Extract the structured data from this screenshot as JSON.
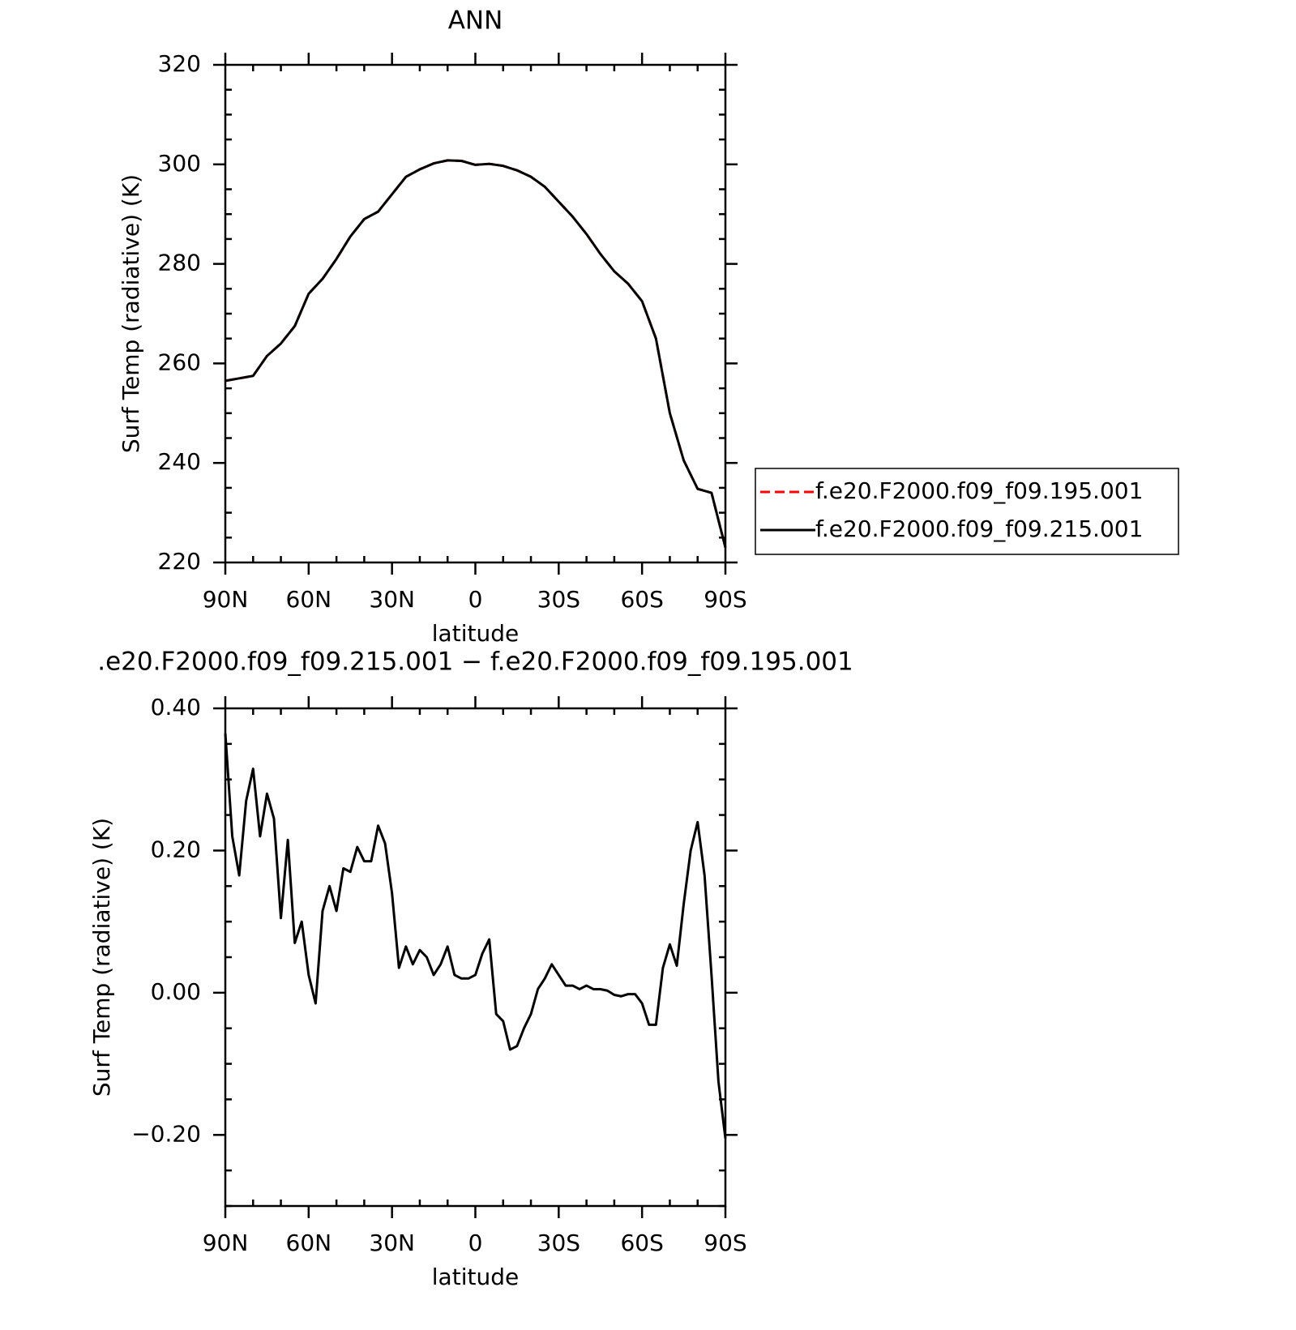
{
  "chart_data": [
    {
      "type": "line",
      "title": "ANN",
      "xlabel": "latitude",
      "ylabel": "Surf Temp (radiative) (K)",
      "x": [
        90,
        85,
        80,
        75,
        70,
        65,
        60,
        55,
        50,
        45,
        40,
        35,
        30,
        25,
        20,
        15,
        10,
        5,
        0,
        -5,
        -10,
        -15,
        -20,
        -25,
        -30,
        -35,
        -40,
        -45,
        -50,
        -55,
        -60,
        -65,
        -70,
        -75,
        -80,
        -85,
        -90
      ],
      "series": [
        {
          "name": "f.e20.F2000.f09_f09.195.001",
          "color": "#ff0000",
          "style": "dashed",
          "values": [
            256.5,
            257,
            257.5,
            261.5,
            264,
            267.5,
            274,
            277,
            281,
            285.5,
            289,
            290.5,
            294,
            297.5,
            299,
            300.2,
            300.8,
            300.7,
            299.9,
            300.1,
            299.7,
            298.8,
            297.5,
            295.5,
            292.5,
            289.5,
            286,
            282,
            278.5,
            276,
            272.5,
            265,
            250,
            240.5,
            234.8,
            234,
            223
          ]
        },
        {
          "name": "f.e20.F2000.f09_f09.215.001",
          "color": "#000000",
          "style": "solid",
          "values": [
            256.5,
            257,
            257.5,
            261.5,
            264,
            267.5,
            274,
            277,
            281,
            285.5,
            289,
            290.5,
            294,
            297.5,
            299,
            300.2,
            300.8,
            300.7,
            299.9,
            300.1,
            299.7,
            298.8,
            297.5,
            295.5,
            292.5,
            289.5,
            286,
            282,
            278.5,
            276,
            272.5,
            265,
            250,
            240.5,
            234.8,
            234,
            223
          ]
        }
      ],
      "xlim": [
        90,
        -90
      ],
      "xticks": [
        {
          "value": 90,
          "label": "90N"
        },
        {
          "value": 60,
          "label": "60N"
        },
        {
          "value": 30,
          "label": "30N"
        },
        0,
        {
          "value": -30,
          "label": "30S"
        },
        {
          "value": -60,
          "label": "60S"
        },
        {
          "value": -90,
          "label": "90S"
        }
      ],
      "ylim": [
        220,
        320
      ],
      "yticks": [
        220,
        240,
        260,
        280,
        300,
        320
      ],
      "legend": "right"
    },
    {
      "type": "line",
      "title": ".e20.F2000.f09_f09.215.001 − f.e20.F2000.f09_f09.195.001",
      "xlabel": "latitude",
      "ylabel": "Surf Temp (radiative) (K)",
      "x": [
        90,
        87.5,
        85,
        82.5,
        80,
        77.5,
        75,
        72.5,
        70,
        67.5,
        65,
        62.5,
        60,
        57.5,
        55,
        52.5,
        50,
        47.5,
        45,
        42.5,
        40,
        37.5,
        35,
        32.5,
        30,
        27.5,
        25,
        22.5,
        20,
        17.5,
        15,
        12.5,
        10,
        7.5,
        5,
        2.5,
        0,
        -2.5,
        -5,
        -7.5,
        -10,
        -12.5,
        -15,
        -17.5,
        -20,
        -22.5,
        -25,
        -27.5,
        -30,
        -32.5,
        -35,
        -37.5,
        -40,
        -42.5,
        -45,
        -47.5,
        -50,
        -52.5,
        -55,
        -57.5,
        -60,
        -62.5,
        -65,
        -67.5,
        -70,
        -72.5,
        -75,
        -77.5,
        -80,
        -82.5,
        -85,
        -87.5,
        -90
      ],
      "color": "#000000",
      "values": [
        0.365,
        0.22,
        0.165,
        0.27,
        0.315,
        0.22,
        0.28,
        0.245,
        0.105,
        0.215,
        0.07,
        0.1,
        0.025,
        -0.015,
        0.115,
        0.15,
        0.115,
        0.175,
        0.17,
        0.205,
        0.185,
        0.185,
        0.235,
        0.21,
        0.14,
        0.035,
        0.065,
        0.04,
        0.06,
        0.05,
        0.025,
        0.04,
        0.065,
        0.025,
        0.02,
        0.02,
        0.025,
        0.055,
        0.075,
        -0.03,
        -0.04,
        -0.08,
        -0.075,
        -0.05,
        -0.03,
        0.005,
        0.02,
        0.04,
        0.025,
        0.01,
        0.01,
        0.005,
        0.01,
        0.005,
        0.005,
        0.003,
        -0.003,
        -0.005,
        -0.002,
        -0.002,
        -0.015,
        -0.045,
        -0.045,
        0.035,
        0.068,
        0.038,
        0.125,
        0.2,
        0.24,
        0.165,
        0.025,
        -0.125,
        -0.205
      ],
      "xlim": [
        90,
        -90
      ],
      "xticks": [
        {
          "value": 90,
          "label": "90N"
        },
        {
          "value": 60,
          "label": "60N"
        },
        {
          "value": 30,
          "label": "30N"
        },
        0,
        {
          "value": -30,
          "label": "30S"
        },
        {
          "value": -60,
          "label": "60S"
        },
        {
          "value": -90,
          "label": "90S"
        }
      ],
      "ylim": [
        -0.3,
        0.4
      ],
      "yticks": [
        {
          "value": -0.2,
          "label": "−0.20"
        },
        {
          "value": 0,
          "label": "0.00"
        },
        {
          "value": 0.2,
          "label": "0.20"
        },
        {
          "value": 0.4,
          "label": "0.40"
        }
      ]
    }
  ]
}
